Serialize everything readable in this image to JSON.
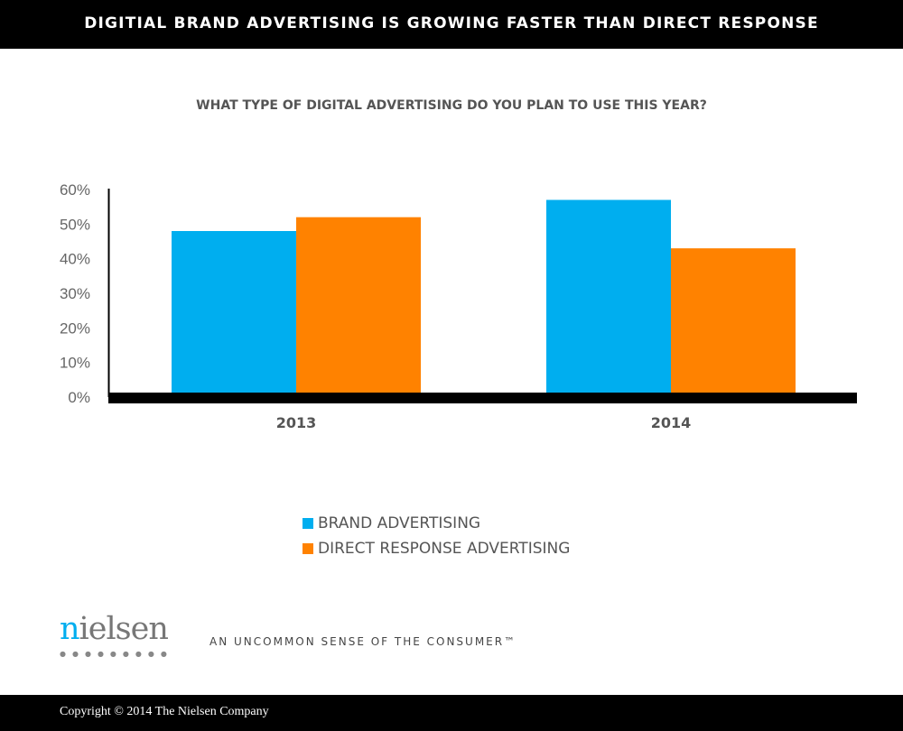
{
  "header": {
    "title": "DIGITIAL BRAND ADVERTISING IS GROWING FASTER THAN DIRECT RESPONSE"
  },
  "chart_data": {
    "type": "bar",
    "title": "WHAT TYPE OF DIGITAL ADVERTISING DO YOU PLAN TO USE THIS YEAR?",
    "categories": [
      "2013",
      "2014"
    ],
    "series": [
      {
        "name": "BRAND ADVERTISING",
        "values": [
          48,
          57
        ],
        "color": "#00aeef"
      },
      {
        "name": "DIRECT RESPONSE ADVERTISING",
        "values": [
          52,
          43
        ],
        "color": "#ff8200"
      }
    ],
    "ylim": [
      0,
      60
    ],
    "yticks": [
      "0%",
      "10%",
      "20%",
      "30%",
      "40%",
      "50%",
      "60%"
    ],
    "grid": false,
    "legend": "bottom"
  },
  "branding": {
    "logo": "nielsen",
    "tagline": "AN UNCOMMON SENSE OF THE CONSUMER™"
  },
  "footer": {
    "copyright": "Copyright © 2014 The Nielsen Company"
  }
}
